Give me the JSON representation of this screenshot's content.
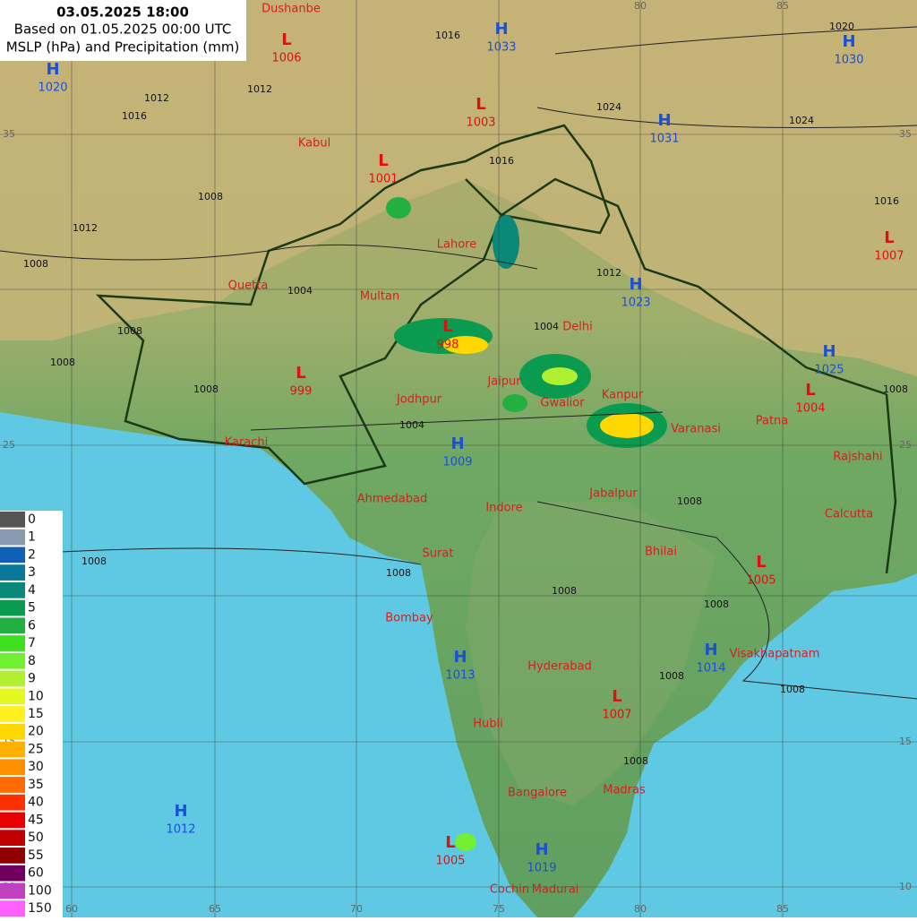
{
  "header": {
    "title": "03.05.2025 18:00",
    "subtitle": "Based on 01.05.2025 00:00 UTC",
    "caption": "MSLP (hPa) and Precipitation (mm)"
  },
  "longitudes": [
    60,
    65,
    70,
    75,
    80,
    85
  ],
  "latitudes": [
    35,
    25,
    15,
    10
  ],
  "cities": [
    "Dushanbe",
    "Kabul",
    "Lahore",
    "Quetta",
    "Multan",
    "Delhi",
    "Jaipur",
    "Jodhpur",
    "Gwalior",
    "Kanpur",
    "Varanasi",
    "Patna",
    "Karachi",
    "Rajshahi",
    "Ahmedabad",
    "Jabalpur",
    "Indore",
    "Calcutta",
    "Surat",
    "Bhilai",
    "Bombay",
    "Hyderabad",
    "Visakhapatnam",
    "Hubli",
    "Bangalore",
    "Madras",
    "Cochin",
    "Madurai"
  ],
  "pressure_centers": [
    {
      "type": "L",
      "value": 1006
    },
    {
      "type": "H",
      "value": 1033
    },
    {
      "type": "H",
      "value": 1030
    },
    {
      "type": "H",
      "value": 1020
    },
    {
      "type": "L",
      "value": 1003
    },
    {
      "type": "H",
      "value": 1031
    },
    {
      "type": "L",
      "value": 1001
    },
    {
      "type": "L",
      "value": 1007
    },
    {
      "type": "H",
      "value": 1023
    },
    {
      "type": "L",
      "value": 998
    },
    {
      "type": "L",
      "value": 999
    },
    {
      "type": "H",
      "value": 1025
    },
    {
      "type": "L",
      "value": 1004
    },
    {
      "type": "H",
      "value": 1009
    },
    {
      "type": "L",
      "value": 1005
    },
    {
      "type": "H",
      "value": 1013
    },
    {
      "type": "H",
      "value": 1014
    },
    {
      "type": "L",
      "value": 1007
    },
    {
      "type": "H",
      "value": 1012
    },
    {
      "type": "L",
      "value": 1005
    },
    {
      "type": "H",
      "value": 1019
    }
  ],
  "isobar_labels": [
    1020,
    1024,
    1016,
    1012,
    1016,
    1012,
    1008,
    1012,
    1008,
    1008,
    1004,
    1008,
    1004,
    1008,
    1004,
    1008,
    1008,
    1008,
    1012,
    1016,
    1024,
    1016,
    1008,
    1008,
    1008,
    1008,
    1008,
    1008
  ],
  "legend": [
    {
      "value": 0,
      "color": "#555555"
    },
    {
      "value": 1,
      "color": "#8a9ab0"
    },
    {
      "value": 2,
      "color": "#1060b8"
    },
    {
      "value": 3,
      "color": "#0a7898"
    },
    {
      "value": 4,
      "color": "#0a8878"
    },
    {
      "value": 5,
      "color": "#0a9a50"
    },
    {
      "value": 6,
      "color": "#22b040"
    },
    {
      "value": 7,
      "color": "#3ee020"
    },
    {
      "value": 8,
      "color": "#70f030"
    },
    {
      "value": 9,
      "color": "#b0f030"
    },
    {
      "value": 10,
      "color": "#e4f820"
    },
    {
      "value": 15,
      "color": "#fff020"
    },
    {
      "value": 20,
      "color": "#ffd800"
    },
    {
      "value": 25,
      "color": "#ffb000"
    },
    {
      "value": 30,
      "color": "#ff9000"
    },
    {
      "value": 35,
      "color": "#ff6a00"
    },
    {
      "value": 40,
      "color": "#ff3000"
    },
    {
      "value": 45,
      "color": "#e80000"
    },
    {
      "value": 50,
      "color": "#c00000"
    },
    {
      "value": 55,
      "color": "#900000"
    },
    {
      "value": 60,
      "color": "#700060"
    },
    {
      "value": 100,
      "color": "#c040c0"
    },
    {
      "value": 150,
      "color": "#ff60ff"
    }
  ]
}
